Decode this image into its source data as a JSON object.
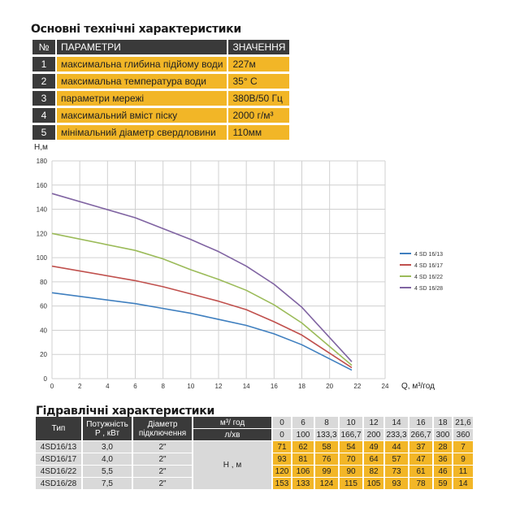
{
  "specs": {
    "title": "Основні технічні характеристики",
    "headers": {
      "num": "№",
      "param": "ПАРАМЕТРИ",
      "value": "ЗНАЧЕННЯ"
    },
    "rows": [
      {
        "num": "1",
        "param": "максимальна глибина підйому води",
        "value": "227м"
      },
      {
        "num": "2",
        "param": "максимальна температура води",
        "value": "35° C"
      },
      {
        "num": "3",
        "param": "параметри мережі",
        "value": "380В/50 Гц"
      },
      {
        "num": "4",
        "param": "максимальний вміст піску",
        "value": "2000 г/м³"
      },
      {
        "num": "5",
        "param": "мінімальний діаметр свердловини",
        "value": "110мм"
      }
    ]
  },
  "chart_data": {
    "type": "line",
    "ylabel": "H,м",
    "xlabel": "Q, м³/год",
    "xlim": [
      0,
      24
    ],
    "ylim": [
      0,
      180
    ],
    "x_ticks": [
      0,
      2,
      4,
      6,
      8,
      10,
      12,
      14,
      16,
      18,
      20,
      22,
      24
    ],
    "y_ticks": [
      0,
      20,
      40,
      60,
      80,
      100,
      120,
      140,
      160,
      180
    ],
    "grid": true,
    "legend_position": "right",
    "x": [
      0,
      6,
      8,
      10,
      12,
      14,
      16,
      18,
      21.6
    ],
    "series": [
      {
        "name": "4 SD 16/13",
        "color": "#3f7fbf",
        "values": [
          71,
          62,
          58,
          54,
          49,
          44,
          37,
          28,
          7
        ]
      },
      {
        "name": "4 SD 16/17",
        "color": "#c0504d",
        "values": [
          93,
          81,
          76,
          70,
          64,
          57,
          47,
          36,
          9
        ]
      },
      {
        "name": "4 SD 16/22",
        "color": "#9bbb59",
        "values": [
          120,
          106,
          99,
          90,
          82,
          73,
          61,
          46,
          11
        ]
      },
      {
        "name": "4 SD 16/28",
        "color": "#8064a2",
        "values": [
          153,
          133,
          124,
          115,
          105,
          93,
          78,
          59,
          14
        ]
      }
    ]
  },
  "hydraulic": {
    "title": "Гідравлічні характеристики",
    "head_type": "Тип",
    "head_power": "Потужність\nP , кВт",
    "head_diam": "Діаметр\nпідключення",
    "unit_q": "м³/ год",
    "unit_l": "л/хв",
    "unit_h": "Н , м",
    "q": [
      "0",
      "6",
      "8",
      "10",
      "12",
      "14",
      "16",
      "18",
      "21,6"
    ],
    "l": [
      "0",
      "100",
      "133,3",
      "166,7",
      "200",
      "233,3",
      "266,7",
      "300",
      "360"
    ],
    "rows": [
      {
        "type": "4SD16/13",
        "power": "3,0",
        "diam": "2\"",
        "h": [
          "71",
          "62",
          "58",
          "54",
          "49",
          "44",
          "37",
          "28",
          "7"
        ]
      },
      {
        "type": "4SD16/17",
        "power": "4,0",
        "diam": "2\"",
        "h": [
          "93",
          "81",
          "76",
          "70",
          "64",
          "57",
          "47",
          "36",
          "9"
        ]
      },
      {
        "type": "4SD16/22",
        "power": "5,5",
        "diam": "2\"",
        "h": [
          "120",
          "106",
          "99",
          "90",
          "82",
          "73",
          "61",
          "46",
          "11"
        ]
      },
      {
        "type": "4SD16/28",
        "power": "7,5",
        "diam": "2\"",
        "h": [
          "153",
          "133",
          "124",
          "115",
          "105",
          "93",
          "78",
          "59",
          "14"
        ]
      }
    ]
  }
}
